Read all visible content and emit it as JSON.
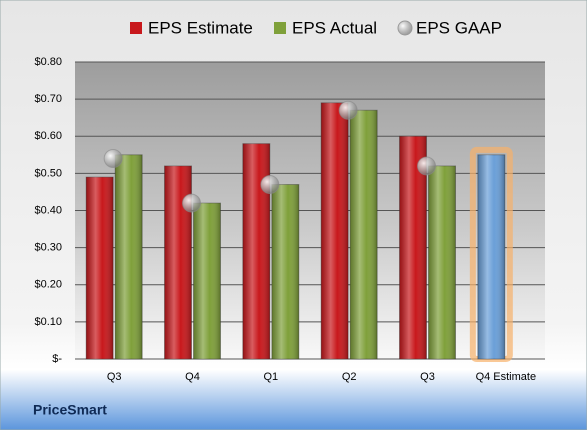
{
  "chart_data": {
    "type": "bar",
    "categories": [
      "Q3",
      "Q4",
      "Q1",
      "Q2",
      "Q3",
      "Q4 Estimate"
    ],
    "series": [
      {
        "name": "EPS Estimate",
        "color": "#c8181c",
        "values": [
          0.49,
          0.52,
          0.58,
          0.69,
          0.6,
          0.55
        ]
      },
      {
        "name": "EPS Actual",
        "color": "#7fa03a",
        "values": [
          0.55,
          0.42,
          0.47,
          0.67,
          0.52,
          null
        ]
      },
      {
        "name": "EPS GAAP",
        "color": "#a9acb1",
        "marker": "circle",
        "values": [
          0.54,
          0.42,
          0.47,
          0.67,
          0.52,
          null
        ]
      }
    ],
    "highlight_index": 5,
    "highlight_color": "#6a9fd8",
    "highlight_glow": "#f7b06a",
    "ylim": [
      0,
      0.8
    ],
    "yticks": [
      {
        "value": 0,
        "label": "$-"
      },
      {
        "value": 0.1,
        "label": "$0.10"
      },
      {
        "value": 0.2,
        "label": "$0.20"
      },
      {
        "value": 0.3,
        "label": "$0.30"
      },
      {
        "value": 0.4,
        "label": "$0.40"
      },
      {
        "value": 0.5,
        "label": "$0.50"
      },
      {
        "value": 0.6,
        "label": "$0.60"
      },
      {
        "value": 0.7,
        "label": "$0.70"
      },
      {
        "value": 0.8,
        "label": "$0.80"
      }
    ],
    "grid": true,
    "legend": "top",
    "footer": "PriceSmart"
  }
}
